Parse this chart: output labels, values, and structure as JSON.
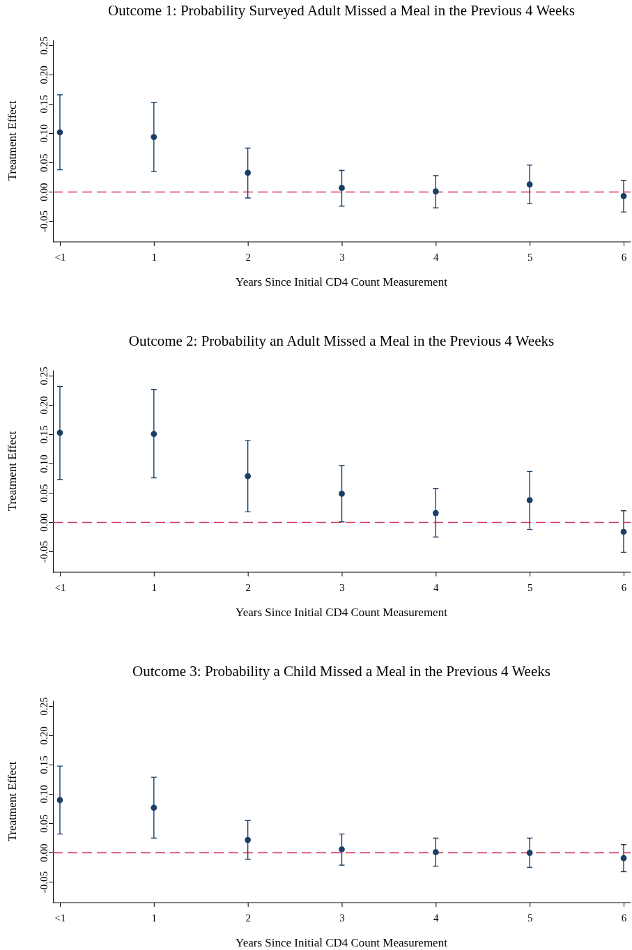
{
  "chart_data": [
    {
      "type": "scatter",
      "title": "Outcome 1: Probability Surveyed Adult Missed a Meal in the Previous 4 Weeks",
      "xlabel": "Years Since Initial CD4 Count Measurement",
      "ylabel": "Treatment Effect",
      "categories": [
        "<1",
        "1",
        "2",
        "3",
        "4",
        "5",
        "6"
      ],
      "series": [
        {
          "color": "#1a3f66",
          "values": [
            0.102,
            0.094,
            0.033,
            0.007,
            0.001,
            0.013,
            -0.007
          ],
          "errors": [
            [
              0.038,
              0.166
            ],
            [
              0.035,
              0.153
            ],
            [
              -0.01,
              0.075
            ],
            [
              -0.024,
              0.037
            ],
            [
              -0.027,
              0.028
            ],
            [
              -0.02,
              0.046
            ],
            [
              -0.034,
              0.02
            ]
          ]
        }
      ],
      "marker": "circle",
      "ylim": [
        -0.085,
        0.26
      ],
      "yticks": [
        {
          "value": -0.05,
          "label": "-0.05"
        },
        {
          "value": 0,
          "label": "0.00"
        },
        {
          "value": 0.05,
          "label": "0.05"
        },
        {
          "value": 0.1,
          "label": "0.10"
        },
        {
          "value": 0.15,
          "label": "0.15"
        },
        {
          "value": 0.2,
          "label": "0.20"
        },
        {
          "value": 0.25,
          "label": "0.25"
        }
      ],
      "ref_lines": [
        {
          "axis": "y",
          "value": 0,
          "color": "#d6345c",
          "line_style": "dashed"
        }
      ]
    },
    {
      "type": "scatter",
      "title": "Outcome 2: Probability an Adult Missed a Meal in the Previous 4 Weeks",
      "xlabel": "Years Since Initial CD4 Count Measurement",
      "ylabel": "Treatment Effect",
      "categories": [
        "<1",
        "1",
        "2",
        "3",
        "4",
        "5",
        "6"
      ],
      "series": [
        {
          "color": "#1a3f66",
          "values": [
            0.153,
            0.151,
            0.079,
            0.049,
            0.016,
            0.038,
            -0.016
          ],
          "errors": [
            [
              0.073,
              0.232
            ],
            [
              0.076,
              0.227
            ],
            [
              0.018,
              0.14
            ],
            [
              0.001,
              0.097
            ],
            [
              -0.025,
              0.058
            ],
            [
              -0.012,
              0.087
            ],
            [
              -0.051,
              0.02
            ]
          ]
        }
      ],
      "marker": "circle",
      "ylim": [
        -0.085,
        0.26
      ],
      "yticks": [
        {
          "value": -0.05,
          "label": "-0.05"
        },
        {
          "value": 0,
          "label": "0.00"
        },
        {
          "value": 0.05,
          "label": "0.05"
        },
        {
          "value": 0.1,
          "label": "0.10"
        },
        {
          "value": 0.15,
          "label": "0.15"
        },
        {
          "value": 0.2,
          "label": "0.20"
        },
        {
          "value": 0.25,
          "label": "0.25"
        }
      ],
      "ref_lines": [
        {
          "axis": "y",
          "value": 0,
          "color": "#d6345c",
          "line_style": "dashed"
        }
      ]
    },
    {
      "type": "scatter",
      "title": "Outcome 3: Probability a Child Missed a Meal in the Previous 4 Weeks",
      "xlabel": "Years Since Initial CD4 Count Measurement",
      "ylabel": "Treatment Effect",
      "categories": [
        "<1",
        "1",
        "2",
        "3",
        "4",
        "5",
        "6"
      ],
      "series": [
        {
          "color": "#1a3f66",
          "values": [
            0.09,
            0.077,
            0.022,
            0.006,
            0.001,
            0.0,
            -0.009
          ],
          "errors": [
            [
              0.032,
              0.148
            ],
            [
              0.025,
              0.129
            ],
            [
              -0.011,
              0.055
            ],
            [
              -0.021,
              0.032
            ],
            [
              -0.023,
              0.025
            ],
            [
              -0.025,
              0.025
            ],
            [
              -0.032,
              0.014
            ]
          ]
        }
      ],
      "marker": "circle",
      "ylim": [
        -0.085,
        0.26
      ],
      "yticks": [
        {
          "value": -0.05,
          "label": "-0.05"
        },
        {
          "value": 0,
          "label": "0.00"
        },
        {
          "value": 0.05,
          "label": "0.05"
        },
        {
          "value": 0.1,
          "label": "0.10"
        },
        {
          "value": 0.15,
          "label": "0.15"
        },
        {
          "value": 0.2,
          "label": "0.20"
        },
        {
          "value": 0.25,
          "label": "0.25"
        }
      ],
      "ref_lines": [
        {
          "axis": "y",
          "value": 0,
          "color": "#d6345c",
          "line_style": "dashed"
        }
      ]
    }
  ]
}
